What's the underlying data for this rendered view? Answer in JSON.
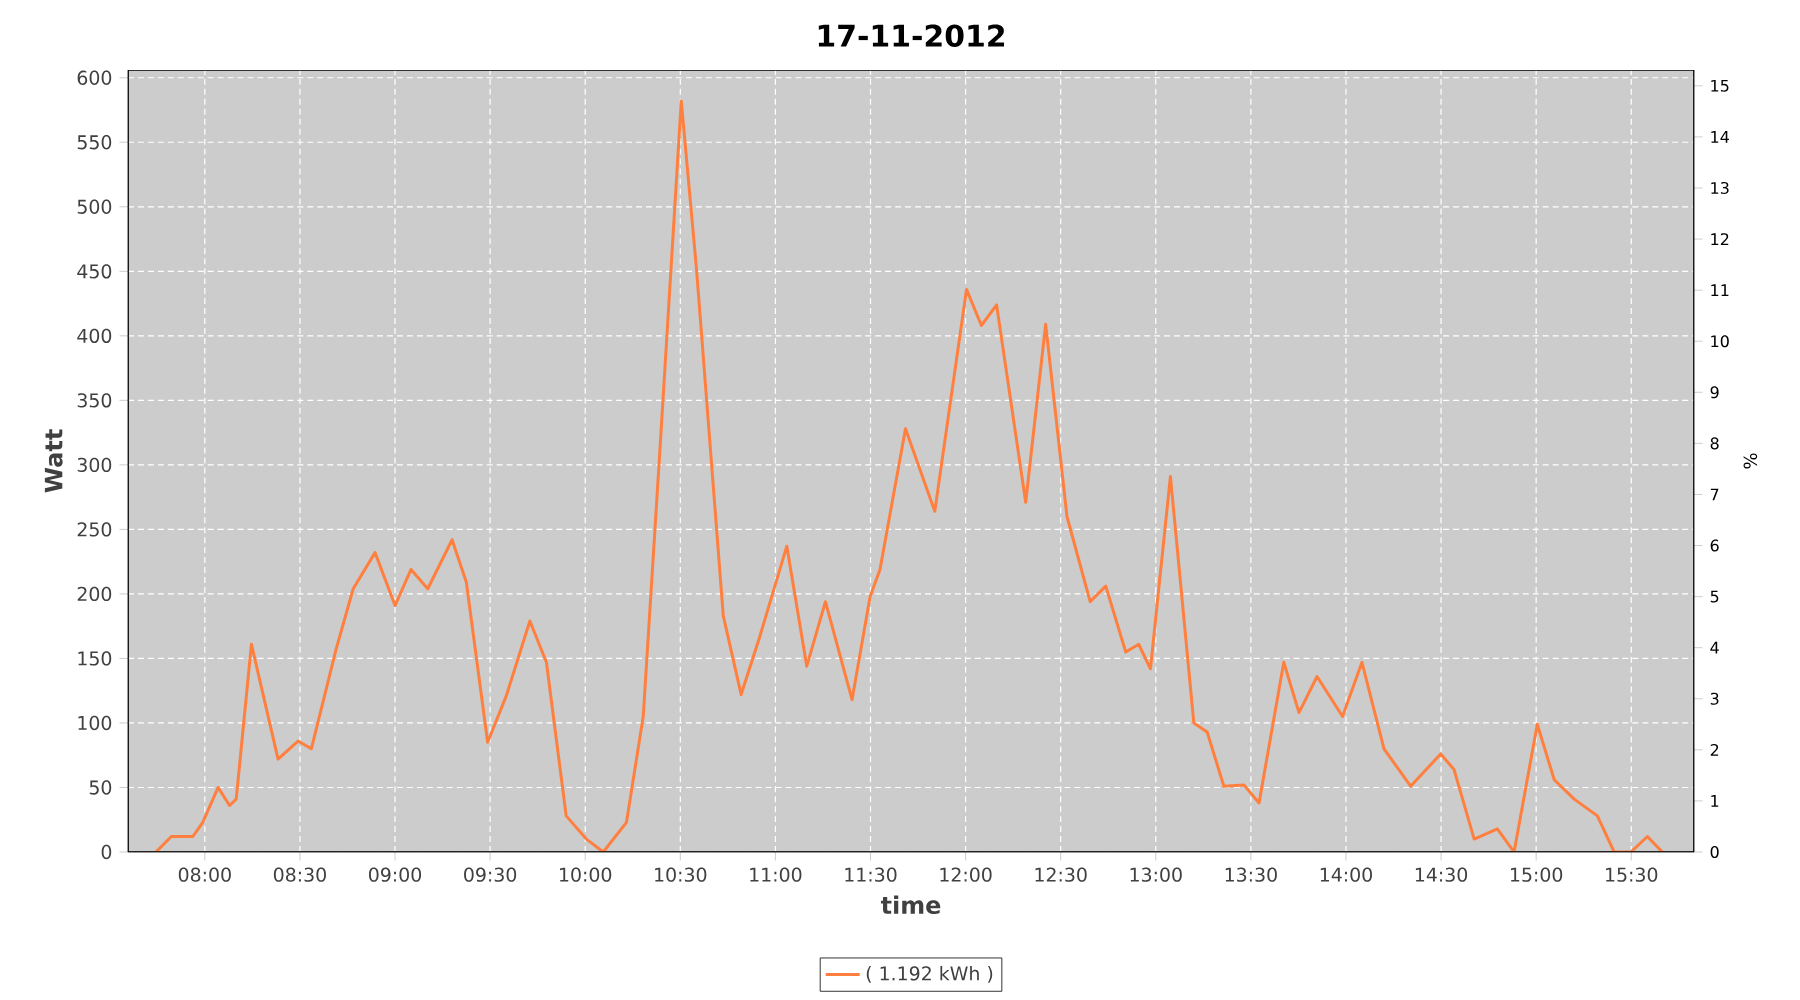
{
  "chart_data": {
    "type": "line",
    "title": "17-11-2012",
    "xlabel": "time",
    "ylabel": "Watt",
    "y2label": "%",
    "xlim": [
      7.596,
      15.83
    ],
    "ylim": [
      0,
      606
    ],
    "y2lim": [
      0,
      15.31
    ],
    "xticks": [
      {
        "value": 8,
        "label": "08:00"
      },
      {
        "value": 8.5,
        "label": "08:30"
      },
      {
        "value": 9,
        "label": "09:00"
      },
      {
        "value": 9.5,
        "label": "09:30"
      },
      {
        "value": 10,
        "label": "10:00"
      },
      {
        "value": 10.5,
        "label": "10:30"
      },
      {
        "value": 11,
        "label": "11:00"
      },
      {
        "value": 11.5,
        "label": "11:30"
      },
      {
        "value": 12,
        "label": "12:00"
      },
      {
        "value": 12.5,
        "label": "12:30"
      },
      {
        "value": 13,
        "label": "13:00"
      },
      {
        "value": 13.5,
        "label": "13:30"
      },
      {
        "value": 14,
        "label": "14:00"
      },
      {
        "value": 14.5,
        "label": "14:30"
      },
      {
        "value": 15,
        "label": "15:00"
      },
      {
        "value": 15.5,
        "label": "15:30"
      }
    ],
    "yticks": [
      0,
      50,
      100,
      150,
      200,
      250,
      300,
      350,
      400,
      450,
      500,
      550,
      600
    ],
    "y2ticks": [
      0,
      1,
      2,
      3,
      4,
      5,
      6,
      7,
      8,
      9,
      10,
      11,
      12,
      13,
      14,
      15
    ],
    "grid": true,
    "legend": "bottom",
    "marker": "none",
    "line_style": "solid",
    "series": [
      {
        "name": "( 1.192 kWh )",
        "color": "#ff7f3f",
        "x": [
          7.743,
          7.824,
          7.937,
          7.989,
          8.07,
          8.13,
          8.165,
          8.245,
          8.385,
          8.49,
          8.56,
          8.69,
          8.78,
          8.895,
          9.0,
          9.084,
          9.172,
          9.3,
          9.375,
          9.487,
          9.585,
          9.709,
          9.796,
          9.9,
          10.006,
          10.095,
          10.217,
          10.305,
          10.393,
          10.505,
          10.585,
          10.726,
          10.82,
          10.918,
          11.06,
          11.165,
          11.263,
          11.403,
          11.498,
          11.55,
          11.684,
          11.838,
          12.005,
          12.083,
          12.163,
          12.316,
          12.421,
          12.533,
          12.655,
          12.737,
          12.842,
          12.91,
          12.972,
          13.077,
          13.2,
          13.27,
          13.358,
          13.463,
          13.543,
          13.673,
          13.753,
          13.848,
          13.982,
          14.084,
          14.2,
          14.34,
          14.498,
          14.568,
          14.674,
          14.796,
          14.884,
          15.006,
          15.095,
          15.2,
          15.322,
          15.41,
          15.498,
          15.585,
          15.663
        ],
        "values": [
          0,
          12,
          12,
          23,
          50,
          36,
          41,
          161,
          72,
          86,
          80,
          157,
          204,
          232,
          191,
          219,
          204,
          242,
          209,
          85,
          121,
          179,
          147,
          28,
          10,
          0,
          23,
          105,
          312,
          582,
          452,
          183,
          122,
          167,
          237,
          144,
          194,
          118,
          198,
          219,
          328,
          264,
          436,
          408,
          424,
          271,
          409,
          260,
          194,
          206,
          155,
          161,
          142,
          291,
          100,
          93,
          51,
          52,
          38,
          147,
          108,
          136,
          105,
          147,
          80,
          51,
          76,
          64,
          10,
          18,
          0,
          99,
          56,
          41,
          28,
          0,
          0,
          12,
          0
        ]
      }
    ]
  }
}
